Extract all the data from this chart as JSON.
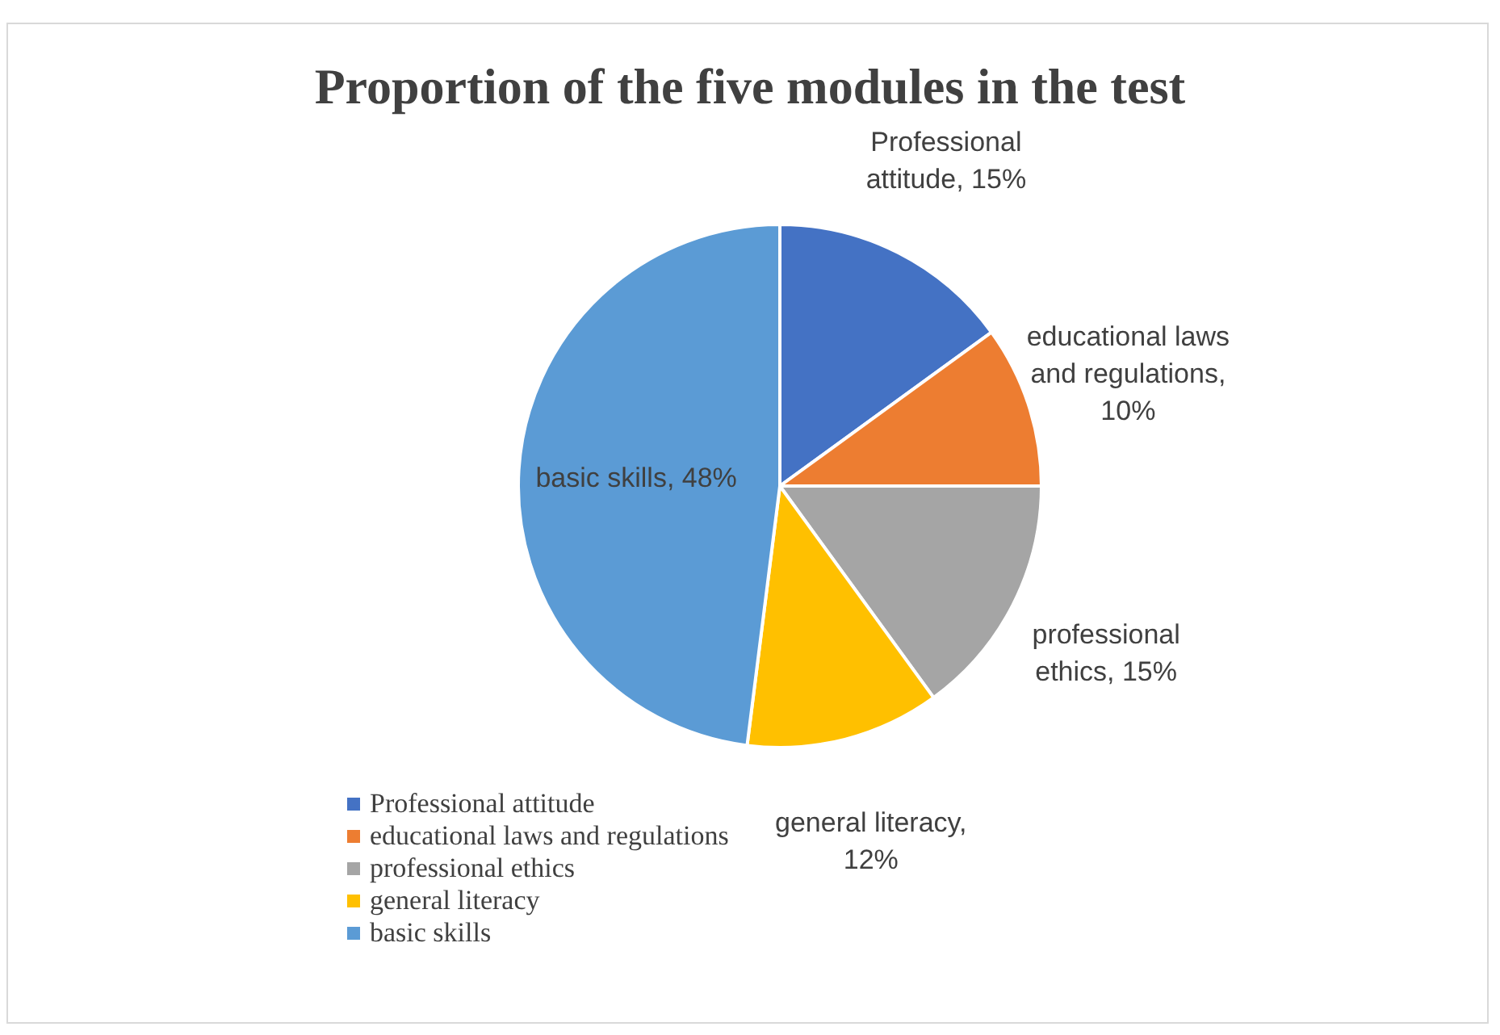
{
  "chart_data": {
    "type": "pie",
    "title": "Proportion of the five modules in the test",
    "categories": [
      "Professional attitude",
      "educational laws and regulations",
      "professional ethics",
      "general literacy",
      "basic skills"
    ],
    "values": [
      15,
      10,
      15,
      12,
      48
    ],
    "value_labels": [
      "Professional attitude, 15%",
      "educational laws and regulations, 10%",
      "professional ethics, 15%",
      "general literacy, 12%",
      "basic skills, 48%"
    ],
    "colors": [
      "#4472c4",
      "#ed7d31",
      "#a5a5a5",
      "#ffc000",
      "#5b9bd5"
    ],
    "legend": "bottom left"
  }
}
